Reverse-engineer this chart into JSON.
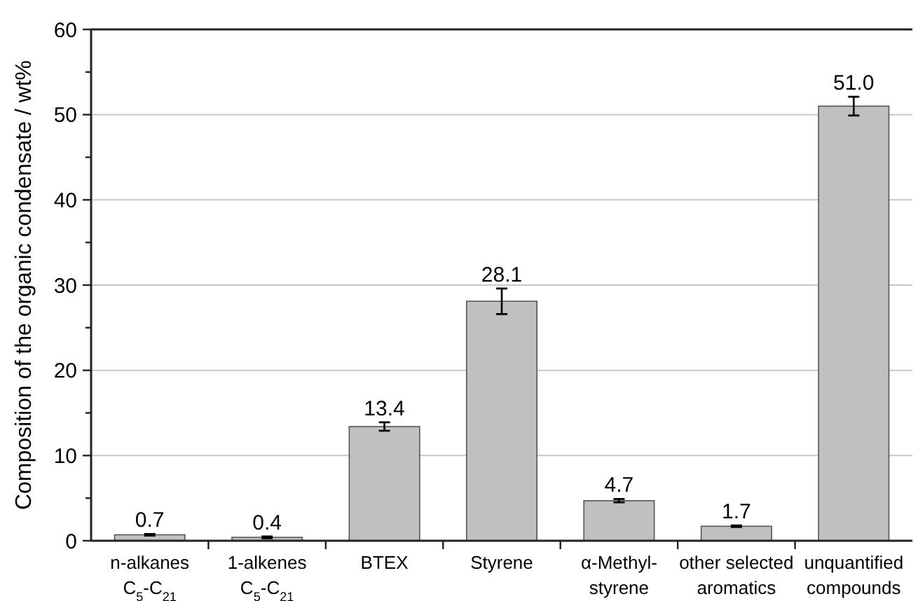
{
  "chart_data": {
    "type": "bar",
    "ylabel": "Composition of the organic condensate / wt%",
    "categories": [
      "n-alkanes\nC$_{5}$-C$_{21}$",
      "1-alkenes\nC$_{5}$-C$_{21}$",
      "BTEX",
      "Styrene",
      "α-Methyl-\nstyrene",
      "other selected\naromatics",
      "unquantified\ncompounds"
    ],
    "values": [
      0.7,
      0.4,
      13.4,
      28.1,
      4.7,
      1.7,
      51.0
    ],
    "errors": [
      0.1,
      0.1,
      0.5,
      1.5,
      0.2,
      0.1,
      1.1
    ],
    "value_labels": [
      "0.7",
      "0.4",
      "13.4",
      "28.1",
      "4.7",
      "1.7",
      "51.0"
    ],
    "color": "#c0c0c0",
    "ylim": [
      0,
      60
    ],
    "yticks": [
      0,
      {
        "value": 5,
        "label": null
      },
      10,
      {
        "value": 15,
        "label": null
      },
      20,
      {
        "value": 25,
        "label": null
      },
      30,
      {
        "value": 35,
        "label": null
      },
      40,
      {
        "value": 45,
        "label": null
      },
      50,
      {
        "value": 55,
        "label": null
      },
      60
    ],
    "grid": "y"
  }
}
